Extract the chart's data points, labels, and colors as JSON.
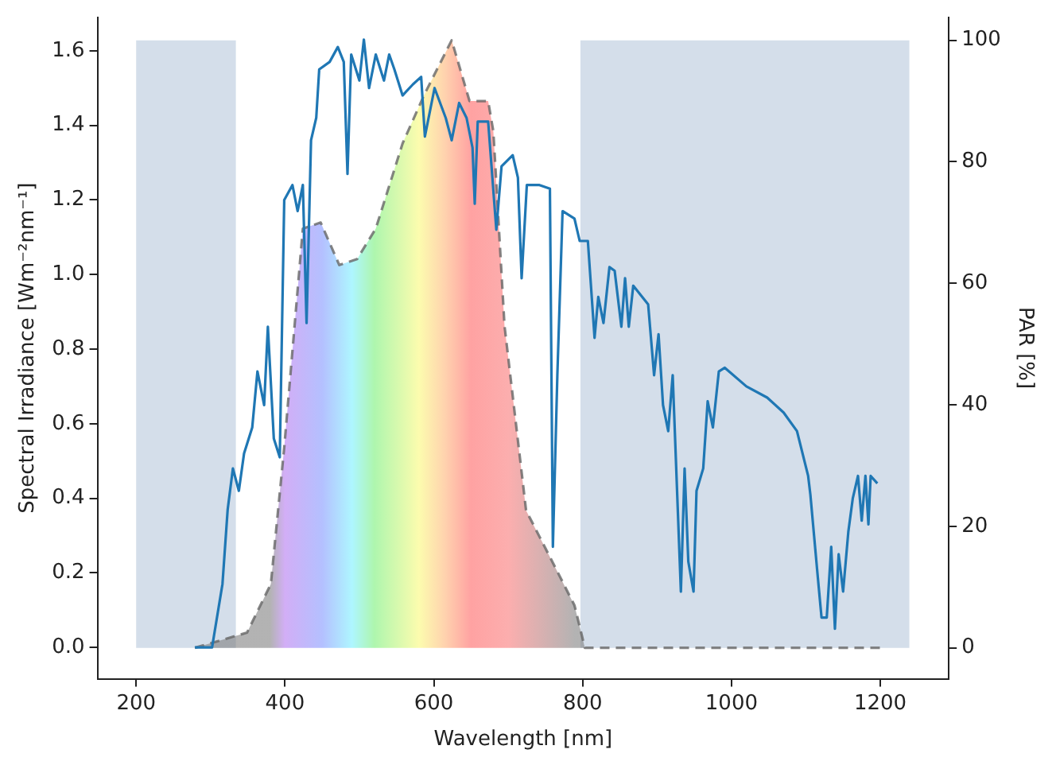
{
  "chart_data": {
    "type": "line",
    "xlabel": "Wavelength [nm]",
    "ylabel": "Spectral Irradiance [Wm⁻²nm⁻¹]",
    "y2label": "PAR [%]",
    "xlim": [
      148,
      1292
    ],
    "xticks": [
      200,
      400,
      600,
      800,
      1000,
      1200
    ],
    "ylim": [
      -0.084,
      1.69
    ],
    "yticks": [
      {
        "value": 0,
        "label": "0.0"
      },
      {
        "value": 0.2,
        "label": "0.2"
      },
      {
        "value": 0.4,
        "label": "0.4"
      },
      {
        "value": 0.6,
        "label": "0.6"
      },
      {
        "value": 0.8,
        "label": "0.8"
      },
      {
        "value": 1.0,
        "label": "1.0"
      },
      {
        "value": 1.2,
        "label": "1.2"
      },
      {
        "value": 1.4,
        "label": "1.4"
      },
      {
        "value": 1.6,
        "label": "1.6"
      }
    ],
    "y2lim": [
      -5.1,
      103.8
    ],
    "y2ticks": [
      0,
      20,
      40,
      60,
      80,
      100
    ],
    "grid": false,
    "legend": false,
    "marker": "none",
    "bands": [
      {
        "axis": "x",
        "from": 200,
        "to": 334,
        "color": "#d4deea"
      },
      {
        "axis": "x",
        "from": 797,
        "to": 1239,
        "color": "#d4deea"
      }
    ],
    "series": [
      {
        "type": "line",
        "color": "#1f77b4",
        "line_style": "solid",
        "x": [
          279,
          302,
          316,
          323,
          330,
          338,
          345,
          356,
          363,
          372,
          377,
          385,
          393,
          399,
          410,
          417,
          424,
          429,
          435,
          442,
          446,
          460,
          471,
          479,
          484,
          489,
          500,
          506,
          513,
          522,
          533,
          540,
          547,
          558,
          572,
          583,
          588,
          601,
          616,
          624,
          634,
          644,
          652,
          655,
          659,
          673,
          684,
          691,
          706,
          713,
          718,
          725,
          742,
          756,
          760,
          766,
          773,
          789,
          796,
          807,
          816,
          821,
          828,
          836,
          843,
          852,
          857,
          862,
          868,
          888,
          896,
          902,
          908,
          915,
          921,
          932,
          937,
          942,
          949,
          953,
          962,
          968,
          975,
          983,
          991,
          1020,
          1048,
          1070,
          1088,
          1103,
          1106,
          1115,
          1121,
          1128,
          1134,
          1139,
          1144,
          1150,
          1157,
          1163,
          1170,
          1175,
          1180,
          1184,
          1187,
          1196
        ],
        "values": [
          0.0,
          0.0,
          0.17,
          0.37,
          0.48,
          0.42,
          0.52,
          0.59,
          0.74,
          0.65,
          0.86,
          0.56,
          0.51,
          1.2,
          1.24,
          1.17,
          1.24,
          0.87,
          1.36,
          1.42,
          1.55,
          1.57,
          1.61,
          1.57,
          1.27,
          1.59,
          1.52,
          1.63,
          1.5,
          1.59,
          1.52,
          1.59,
          1.55,
          1.48,
          1.51,
          1.53,
          1.37,
          1.5,
          1.42,
          1.36,
          1.46,
          1.42,
          1.34,
          1.19,
          1.41,
          1.41,
          1.12,
          1.29,
          1.32,
          1.26,
          0.99,
          1.24,
          1.24,
          1.23,
          0.27,
          0.73,
          1.17,
          1.15,
          1.09,
          1.09,
          0.83,
          0.94,
          0.87,
          1.02,
          1.01,
          0.86,
          0.99,
          0.86,
          0.97,
          0.92,
          0.73,
          0.84,
          0.65,
          0.58,
          0.73,
          0.15,
          0.48,
          0.23,
          0.15,
          0.42,
          0.48,
          0.66,
          0.59,
          0.74,
          0.75,
          0.7,
          0.67,
          0.63,
          0.58,
          0.46,
          0.41,
          0.21,
          0.08,
          0.08,
          0.27,
          0.05,
          0.25,
          0.15,
          0.31,
          0.4,
          0.46,
          0.34,
          0.46,
          0.33,
          0.46,
          0.44
        ]
      },
      {
        "type": "area",
        "axis": "y2",
        "color": "#666666",
        "line_style": "dashed",
        "x": [
          279,
          349,
          381,
          399,
          424,
          448,
          473,
          497,
          522,
          558,
          587,
          624,
          648,
          673,
          680,
          695,
          724,
          760,
          789,
          803,
          1200
        ],
        "values": [
          0,
          2.5,
          10.5,
          33,
          69,
          70,
          63,
          64,
          69,
          83,
          91,
          100,
          90,
          90,
          85,
          53,
          22.6,
          14,
          7,
          0,
          0
        ]
      }
    ]
  }
}
